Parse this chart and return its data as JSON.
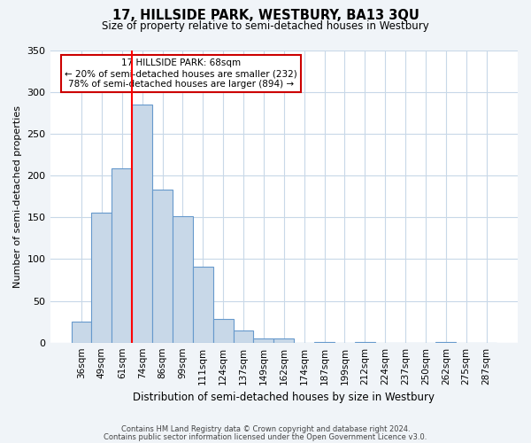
{
  "title": "17, HILLSIDE PARK, WESTBURY, BA13 3QU",
  "subtitle": "Size of property relative to semi-detached houses in Westbury",
  "xlabel": "Distribution of semi-detached houses by size in Westbury",
  "ylabel": "Number of semi-detached properties",
  "bar_labels": [
    "36sqm",
    "49sqm",
    "61sqm",
    "74sqm",
    "86sqm",
    "99sqm",
    "111sqm",
    "124sqm",
    "137sqm",
    "149sqm",
    "162sqm",
    "174sqm",
    "187sqm",
    "199sqm",
    "212sqm",
    "224sqm",
    "237sqm",
    "250sqm",
    "262sqm",
    "275sqm",
    "287sqm"
  ],
  "bar_heights": [
    25,
    155,
    208,
    285,
    183,
    151,
    91,
    28,
    14,
    5,
    5,
    0,
    1,
    0,
    1,
    0,
    0,
    0,
    1,
    0,
    0
  ],
  "bar_color": "#c8d8e8",
  "bar_edge_color": "#6699cc",
  "red_line_x": 2.5,
  "red_line_label": "17 HILLSIDE PARK: 68sqm",
  "annotation_line1": "← 20% of semi-detached houses are smaller (232)",
  "annotation_line2": "78% of semi-detached houses are larger (894) →",
  "annotation_box_color": "#ffffff",
  "annotation_box_edge_color": "#cc0000",
  "ylim": [
    0,
    350
  ],
  "yticks": [
    0,
    50,
    100,
    150,
    200,
    250,
    300,
    350
  ],
  "footer_line1": "Contains HM Land Registry data © Crown copyright and database right 2024.",
  "footer_line2": "Contains public sector information licensed under the Open Government Licence v3.0.",
  "bg_color": "#f0f4f8",
  "plot_bg_color": "#ffffff",
  "grid_color": "#c8d8e8"
}
